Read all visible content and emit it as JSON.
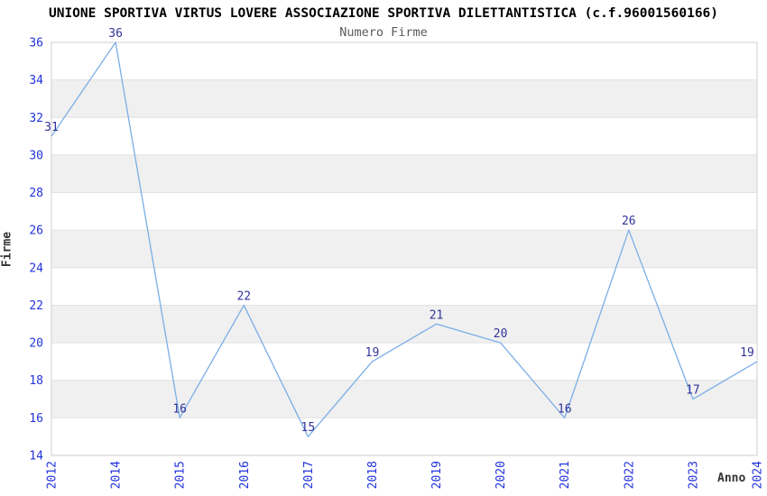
{
  "header": {
    "title": "UNIONE SPORTIVA VIRTUS LOVERE ASSOCIAZIONE SPORTIVA DILETTANTISTICA (c.f.96001560166)",
    "subtitle": "Numero Firme"
  },
  "chart_data": {
    "type": "line",
    "title": "UNIONE SPORTIVA VIRTUS LOVERE ASSOCIAZIONE SPORTIVA DILETTANTISTICA (c.f.96001560166)",
    "subtitle": "Numero Firme",
    "categories": [
      "2012",
      "2014",
      "2015",
      "2016",
      "2017",
      "2018",
      "2019",
      "2020",
      "2021",
      "2022",
      "2023",
      "2024"
    ],
    "values": [
      31,
      36,
      16,
      22,
      15,
      19,
      21,
      20,
      16,
      26,
      17,
      19
    ],
    "xlabel": "Anno",
    "ylabel": "Firme",
    "ylim": [
      14,
      36
    ],
    "ytick_step": 2,
    "yticks": [
      14,
      16,
      18,
      20,
      22,
      24,
      26,
      28,
      30,
      32,
      34,
      36
    ],
    "point_labels_visible": true,
    "legend": "none",
    "grid": "alternating-horizontal-bands",
    "colors": {
      "line": "#7aaee6",
      "point_label": "#333399",
      "tick_label": "#2233dd",
      "band": "#f0f0f0",
      "grid_line": "#e2e2e2",
      "border": "#cfcfcf",
      "title": "#000000",
      "subtitle": "#5a5a5a",
      "axis_title": "#333333",
      "background": "#ffffff"
    }
  }
}
